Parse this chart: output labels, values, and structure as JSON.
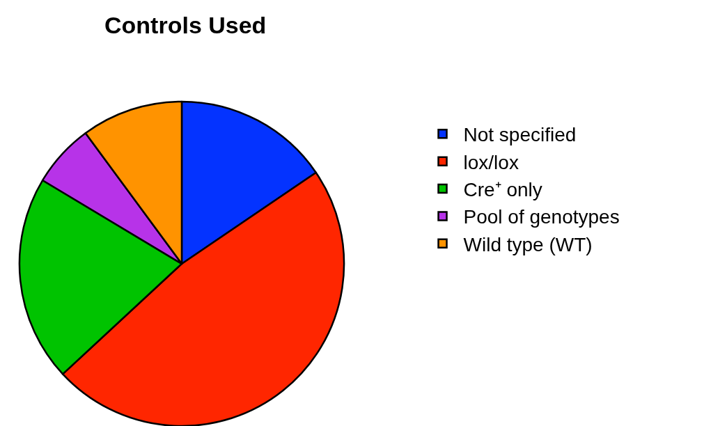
{
  "chart_data": {
    "type": "pie",
    "title": "Controls Used",
    "categories": [
      "Not specified",
      "lox/lox",
      "Cre⁺ only",
      "Pool of genotypes",
      "Wild type (WT)"
    ],
    "values": [
      15.5,
      47.6,
      20.5,
      6.3,
      10.1
    ],
    "colors": [
      "#0433ff",
      "#ff2600",
      "#00c300",
      "#b733e8",
      "#ff9300"
    ],
    "legend": "right"
  }
}
